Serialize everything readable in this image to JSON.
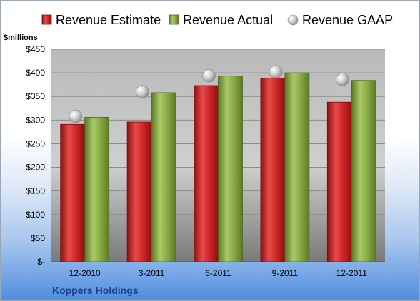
{
  "chart_data": {
    "type": "bar",
    "title": "",
    "company": "Koppers Holdings",
    "unit_label": "$millions",
    "categories": [
      "12-2010",
      "3-2011",
      "6-2011",
      "9-2011",
      "12-2011"
    ],
    "series": [
      {
        "name": "Revenue Estimate",
        "kind": "bar",
        "color": "#d42a2a",
        "values": [
          291,
          296,
          373,
          389,
          338
        ]
      },
      {
        "name": "Revenue Actual",
        "kind": "bar",
        "color": "#8db04a",
        "values": [
          306,
          358,
          393,
          400,
          384
        ]
      },
      {
        "name": "Revenue GAAP",
        "kind": "marker",
        "color": "#c0c0c0",
        "values": [
          308,
          360,
          394,
          402,
          386
        ]
      }
    ],
    "ylim": [
      0,
      450
    ],
    "yticks": [
      0,
      50,
      100,
      150,
      200,
      250,
      300,
      350,
      400,
      450
    ],
    "ytick_labels": [
      "$-",
      "$50",
      "$100",
      "$150",
      "$200",
      "$250",
      "$300",
      "$350",
      "$400",
      "$450"
    ],
    "grid": true,
    "legend_position": "top"
  }
}
